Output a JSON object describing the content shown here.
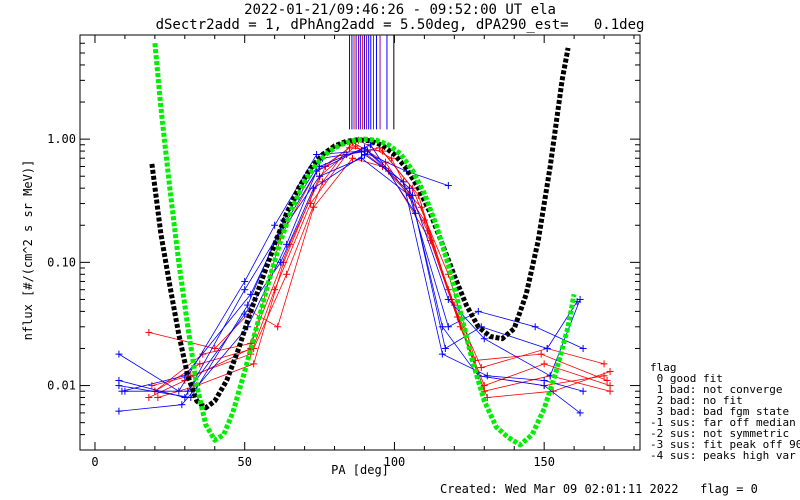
{
  "title_line1": "2022-01-21/09:46:26 - 09:52:00 UT ela",
  "title_line2": "dSectr2add = 1, dPhAng2add = 5.50deg, dPA290_est=   0.1deg",
  "footer": {
    "created": "Created: Wed Mar 09 02:01:11 2022",
    "flag": "flag = 0"
  },
  "flag_legend": [
    "flag",
    " 0 good fit",
    " 1 bad: not converge",
    " 2 bad: no fit",
    " 3 bad: bad fgm state",
    "-1 sus: far off median",
    "-2 sus: not symmetric",
    "-3 sus: fit peak off 90",
    "-4 sus: peaks high var"
  ],
  "colors": {
    "red": "#ff0000",
    "blue": "#0000ff",
    "black": "#000000",
    "green": "#00ee00",
    "purple": "#8800aa"
  },
  "chart_data": {
    "type": "line",
    "xlabel": "PA [deg]",
    "ylabel": "nflux [#/(cm^2 s sr MeV)]",
    "xlim": [
      -5,
      182
    ],
    "ylim": [
      0.003,
      7.0
    ],
    "yscale": "log",
    "xticks": [
      0,
      50,
      100,
      150
    ],
    "xticklabels": [
      "0",
      "50",
      "100",
      "150"
    ],
    "yticks": [
      0.01,
      0.1,
      1.0
    ],
    "yticklabels": [
      "0.01",
      "0.10",
      "1.00"
    ],
    "series": [
      {
        "color": "red",
        "style": "line+plus",
        "lines": [
          [
            [
              18,
              0.008
            ],
            [
              30,
              0.011
            ],
            [
              52,
              0.02
            ],
            [
              62,
              0.16
            ],
            [
              74,
              0.55
            ],
            [
              85,
              0.85
            ],
            [
              96,
              0.8
            ],
            [
              108,
              0.35
            ],
            [
              118,
              0.06
            ],
            [
              128,
              0.012
            ],
            [
              150,
              0.01
            ],
            [
              170,
              0.012
            ]
          ],
          [
            [
              20,
              0.009
            ],
            [
              35,
              0.015
            ],
            [
              53,
              0.02
            ],
            [
              64,
              0.08
            ],
            [
              76,
              0.45
            ],
            [
              86,
              0.95
            ],
            [
              97,
              0.65
            ],
            [
              110,
              0.22
            ],
            [
              120,
              0.045
            ],
            [
              130,
              0.009
            ],
            [
              152,
              0.012
            ],
            [
              172,
              0.009
            ]
          ],
          [
            [
              19,
              0.01
            ],
            [
              32,
              0.012
            ],
            [
              52,
              0.018
            ],
            [
              60,
              0.06
            ],
            [
              72,
              0.3
            ],
            [
              84,
              0.75
            ],
            [
              95,
              0.85
            ],
            [
              106,
              0.4
            ],
            [
              118,
              0.08
            ],
            [
              127,
              0.016
            ],
            [
              149,
              0.018
            ],
            [
              171,
              0.011
            ]
          ],
          [
            [
              21,
              0.008
            ],
            [
              34,
              0.01
            ],
            [
              53,
              0.015
            ],
            [
              63,
              0.1
            ],
            [
              75,
              0.5
            ],
            [
              87,
              0.88
            ],
            [
              98,
              0.55
            ],
            [
              112,
              0.15
            ],
            [
              122,
              0.03
            ],
            [
              131,
              0.008
            ],
            [
              153,
              0.009
            ],
            [
              172,
              0.013
            ]
          ],
          [
            [
              18,
              0.027
            ],
            [
              40,
              0.02
            ],
            [
              52,
              0.04
            ],
            [
              61,
              0.03
            ],
            [
              73,
              0.28
            ],
            [
              86,
              0.7
            ],
            [
              96,
              0.6
            ],
            [
              109,
              0.28
            ],
            [
              119,
              0.05
            ],
            [
              129,
              0.014
            ],
            [
              151,
              0.02
            ],
            [
              170,
              0.015
            ]
          ],
          [
            [
              20,
              0.009
            ],
            [
              36,
              0.018
            ],
            [
              52,
              0.022
            ],
            [
              65,
              0.14
            ],
            [
              77,
              0.6
            ],
            [
              88,
              0.98
            ],
            [
              99,
              0.7
            ],
            [
              111,
              0.18
            ],
            [
              121,
              0.036
            ],
            [
              130,
              0.01
            ],
            [
              150,
              0.015
            ],
            [
              172,
              0.01
            ]
          ]
        ]
      },
      {
        "color": "blue",
        "style": "line+plus",
        "lines": [
          [
            [
              8,
              0.018
            ],
            [
              28,
              0.009
            ],
            [
              50,
              0.07
            ],
            [
              60,
              0.2
            ],
            [
              74,
              0.75
            ],
            [
              89,
              0.8
            ],
            [
              104,
              0.55
            ],
            [
              118,
              0.42
            ]
          ],
          [
            [
              8,
              0.011
            ],
            [
              30,
              0.008
            ],
            [
              50,
              0.06
            ],
            [
              62,
              0.18
            ],
            [
              75,
              0.6
            ],
            [
              90,
              0.85
            ],
            [
              105,
              0.4
            ],
            [
              116,
              0.03
            ],
            [
              128,
              0.012
            ],
            [
              150,
              0.01
            ],
            [
              162,
              0.006
            ]
          ],
          [
            [
              8,
              0.01
            ],
            [
              32,
              0.008
            ],
            [
              51,
              0.045
            ],
            [
              63,
              0.22
            ],
            [
              76,
              0.7
            ],
            [
              91,
              0.8
            ],
            [
              106,
              0.35
            ],
            [
              118,
              0.05
            ],
            [
              130,
              0.024
            ],
            [
              152,
              0.012
            ],
            [
              162,
              0.05
            ]
          ],
          [
            [
              8,
              0.0062
            ],
            [
              29,
              0.007
            ],
            [
              51,
              0.03
            ],
            [
              64,
              0.14
            ],
            [
              74,
              0.55
            ],
            [
              92,
              0.9
            ],
            [
              107,
              0.25
            ],
            [
              117,
              0.02
            ],
            [
              129,
              0.03
            ],
            [
              151,
              0.02
            ],
            [
              161,
              0.048
            ]
          ],
          [
            [
              10,
              0.009
            ],
            [
              31,
              0.009
            ],
            [
              50,
              0.038
            ],
            [
              62,
              0.1
            ],
            [
              73,
              0.4
            ],
            [
              90,
              0.75
            ],
            [
              103,
              0.45
            ],
            [
              116,
              0.018
            ],
            [
              131,
              0.012
            ],
            [
              150,
              0.011
            ],
            [
              163,
              0.009
            ]
          ],
          [
            [
              9,
              0.009
            ],
            [
              30,
              0.012
            ],
            [
              52,
              0.055
            ],
            [
              61,
              0.16
            ],
            [
              75,
              0.5
            ],
            [
              89,
              0.7
            ],
            [
              105,
              0.35
            ],
            [
              118,
              0.03
            ],
            [
              128,
              0.04
            ],
            [
              147,
              0.03
            ],
            [
              163,
              0.02
            ]
          ]
        ]
      },
      {
        "color": "black",
        "style": "dashed-fit",
        "points": [
          [
            19,
            0.63
          ],
          [
            22,
            0.17
          ],
          [
            25,
            0.065
          ],
          [
            28,
            0.026
          ],
          [
            31,
            0.012
          ],
          [
            34,
            0.0075
          ],
          [
            37,
            0.0066
          ],
          [
            40,
            0.0075
          ],
          [
            44,
            0.011
          ],
          [
            48,
            0.02
          ],
          [
            52,
            0.04
          ],
          [
            56,
            0.075
          ],
          [
            60,
            0.14
          ],
          [
            64,
            0.25
          ],
          [
            68,
            0.4
          ],
          [
            72,
            0.58
          ],
          [
            76,
            0.75
          ],
          [
            80,
            0.88
          ],
          [
            84,
            0.96
          ],
          [
            88,
            0.99
          ],
          [
            92,
            0.97
          ],
          [
            96,
            0.89
          ],
          [
            100,
            0.75
          ],
          [
            104,
            0.58
          ],
          [
            108,
            0.4
          ],
          [
            112,
            0.25
          ],
          [
            116,
            0.14
          ],
          [
            120,
            0.078
          ],
          [
            124,
            0.045
          ],
          [
            128,
            0.03
          ],
          [
            132,
            0.025
          ],
          [
            136,
            0.024
          ],
          [
            140,
            0.029
          ],
          [
            144,
            0.055
          ],
          [
            148,
            0.15
          ],
          [
            152,
            0.6
          ],
          [
            156,
            3.0
          ],
          [
            158,
            5.5
          ]
        ]
      },
      {
        "color": "green",
        "style": "dashed-fit",
        "points": [
          [
            20,
            6.0
          ],
          [
            22,
            1.8
          ],
          [
            25,
            0.4
          ],
          [
            28,
            0.1
          ],
          [
            31,
            0.03
          ],
          [
            34,
            0.01
          ],
          [
            37,
            0.0048
          ],
          [
            40,
            0.0036
          ],
          [
            43,
            0.004
          ],
          [
            46,
            0.006
          ],
          [
            50,
            0.013
          ],
          [
            54,
            0.03
          ],
          [
            58,
            0.07
          ],
          [
            62,
            0.15
          ],
          [
            66,
            0.28
          ],
          [
            70,
            0.45
          ],
          [
            74,
            0.63
          ],
          [
            78,
            0.79
          ],
          [
            82,
            0.9
          ],
          [
            86,
            0.97
          ],
          [
            90,
            1.0
          ],
          [
            94,
            0.98
          ],
          [
            98,
            0.9
          ],
          [
            102,
            0.76
          ],
          [
            106,
            0.56
          ],
          [
            110,
            0.36
          ],
          [
            114,
            0.2
          ],
          [
            118,
            0.095
          ],
          [
            122,
            0.04
          ],
          [
            126,
            0.016
          ],
          [
            130,
            0.0075
          ],
          [
            134,
            0.0046
          ],
          [
            138,
            0.0038
          ],
          [
            142,
            0.0033
          ],
          [
            146,
            0.004
          ],
          [
            150,
            0.0065
          ],
          [
            154,
            0.013
          ],
          [
            158,
            0.03
          ],
          [
            160,
            0.055
          ]
        ]
      }
    ],
    "peak_markers_x": [
      85.0,
      85.8,
      86.5,
      87.2,
      88.0,
      88.6,
      89.3,
      90.0,
      90.7,
      91.4,
      92.1,
      93.0,
      94.0,
      95.2,
      97.5,
      99.8
    ],
    "peak_marker_colors": [
      "blue",
      "blue",
      "red",
      "blue",
      "purple",
      "blue",
      "red",
      "blue",
      "purple",
      "blue",
      "blue",
      "red",
      "blue",
      "purple",
      "blue",
      "black"
    ]
  }
}
